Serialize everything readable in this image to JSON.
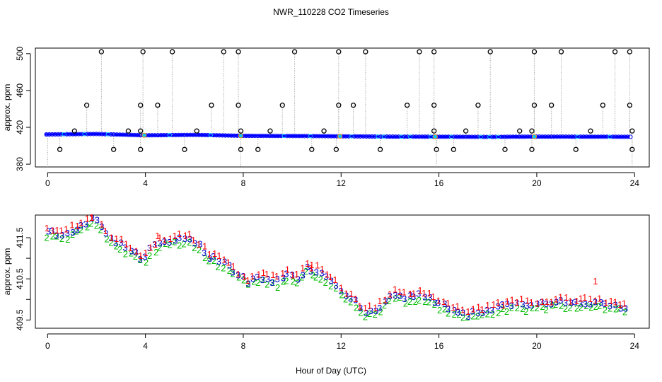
{
  "title": "NWR_110228  CO2 Timeseries",
  "xlabel": "Hour of Day (UTC)",
  "colors": {
    "line": "#a0a0a0",
    "point": "#000000",
    "blue": "#0000ff",
    "cyan": "#00c8ff",
    "orange": "#ff8c00",
    "red": "#ff0000",
    "green": "#00bb00",
    "navy": "#0000cc"
  },
  "chart_data": [
    {
      "type": "line",
      "ylabel": "approx. ppm",
      "xlim": [
        -0.5,
        24.6
      ],
      "ylim": [
        377,
        506
      ],
      "x_ticks": [
        "0",
        "4",
        "8",
        "12",
        "16",
        "20",
        "24"
      ],
      "y_ticks": [
        "380",
        "420",
        "460",
        "500"
      ],
      "baseline": [
        [
          0,
          412.3
        ],
        [
          2,
          412.8
        ],
        [
          4,
          411.3
        ],
        [
          6,
          411.8
        ],
        [
          8,
          410.8
        ],
        [
          10,
          410.6
        ],
        [
          12,
          410.3
        ],
        [
          14,
          409.9
        ],
        [
          16,
          409.8
        ],
        [
          18,
          409.6
        ],
        [
          20,
          409.9
        ],
        [
          22,
          409.8
        ],
        [
          23.8,
          409.7
        ]
      ],
      "spikes_high": [
        [
          2.2,
          502
        ],
        [
          3.9,
          502
        ],
        [
          5.1,
          502
        ],
        [
          7.2,
          502
        ],
        [
          7.8,
          502
        ],
        [
          10.1,
          502
        ],
        [
          11.9,
          502
        ],
        [
          13.0,
          502
        ],
        [
          15.2,
          502
        ],
        [
          15.8,
          502
        ],
        [
          18.1,
          502
        ],
        [
          19.9,
          502
        ],
        [
          21.0,
          502
        ],
        [
          23.2,
          502
        ],
        [
          23.8,
          502
        ]
      ],
      "spikes_mid": [
        [
          1.6,
          444
        ],
        [
          3.8,
          444
        ],
        [
          4.5,
          444
        ],
        [
          6.7,
          444
        ],
        [
          7.8,
          444
        ],
        [
          9.6,
          444
        ],
        [
          11.9,
          444
        ],
        [
          12.5,
          444
        ],
        [
          14.7,
          444
        ],
        [
          15.8,
          444
        ],
        [
          17.6,
          444
        ],
        [
          19.9,
          444
        ],
        [
          20.6,
          444
        ],
        [
          22.7,
          444
        ],
        [
          23.8,
          444
        ]
      ],
      "spikes_small": [
        [
          1.1,
          416
        ],
        [
          3.3,
          416
        ],
        [
          3.8,
          416
        ],
        [
          6.1,
          416
        ],
        [
          7.9,
          416
        ],
        [
          9.1,
          416
        ],
        [
          11.3,
          416
        ],
        [
          15.8,
          416
        ],
        [
          17.1,
          416
        ],
        [
          19.3,
          416
        ],
        [
          19.8,
          416
        ],
        [
          22.2,
          416
        ],
        [
          23.9,
          416
        ]
      ],
      "dips": [
        [
          0.5,
          396
        ],
        [
          2.7,
          396
        ],
        [
          3.8,
          396
        ],
        [
          5.6,
          396
        ],
        [
          7.9,
          396
        ],
        [
          8.6,
          396
        ],
        [
          10.8,
          396
        ],
        [
          11.8,
          396
        ],
        [
          13.6,
          396
        ],
        [
          15.9,
          396
        ],
        [
          16.6,
          396
        ],
        [
          18.7,
          396
        ],
        [
          19.8,
          396
        ],
        [
          21.6,
          396
        ],
        [
          23.9,
          396
        ]
      ]
    },
    {
      "type": "scatter",
      "ylabel": "approx. ppm",
      "xlim": [
        -0.5,
        24.6
      ],
      "ylim": [
        409.3,
        412.05
      ],
      "x_ticks": [
        "0",
        "4",
        "8",
        "12",
        "16",
        "20",
        "24"
      ],
      "y_ticks": [
        "409.5",
        "410.5",
        "411.5"
      ],
      "y_tick_values": [
        409.5,
        410.5,
        411.5
      ],
      "x_tick_values": [
        0,
        4,
        8,
        12,
        16,
        20,
        24
      ],
      "series": [
        {
          "name": "1",
          "offset": 0.08
        },
        {
          "name": "2",
          "offset": -0.1
        },
        {
          "name": "3",
          "offset": 0.0
        }
      ],
      "trend": [
        [
          0,
          411.65
        ],
        [
          0.4,
          411.6
        ],
        [
          0.8,
          411.62
        ],
        [
          1.2,
          411.75
        ],
        [
          1.6,
          411.85
        ],
        [
          1.9,
          412.0
        ],
        [
          2.2,
          411.8
        ],
        [
          2.5,
          411.5
        ],
        [
          3.0,
          411.35
        ],
        [
          3.5,
          411.15
        ],
        [
          3.9,
          411.0
        ],
        [
          4.2,
          411.2
        ],
        [
          4.6,
          411.4
        ],
        [
          5.2,
          411.45
        ],
        [
          5.8,
          411.5
        ],
        [
          6.2,
          411.3
        ],
        [
          6.6,
          411.05
        ],
        [
          7.2,
          410.9
        ],
        [
          7.8,
          410.6
        ],
        [
          8.2,
          410.45
        ],
        [
          8.6,
          410.55
        ],
        [
          9.0,
          410.5
        ],
        [
          9.4,
          410.45
        ],
        [
          9.8,
          410.6
        ],
        [
          10.2,
          410.55
        ],
        [
          10.6,
          410.75
        ],
        [
          11.0,
          410.7
        ],
        [
          11.4,
          410.55
        ],
        [
          11.8,
          410.35
        ],
        [
          12.2,
          410.1
        ],
        [
          12.6,
          409.95
        ],
        [
          13.0,
          409.7
        ],
        [
          13.4,
          409.75
        ],
        [
          13.8,
          409.95
        ],
        [
          14.2,
          410.15
        ],
        [
          14.6,
          410.05
        ],
        [
          15.2,
          410.1
        ],
        [
          15.7,
          410.0
        ],
        [
          16.2,
          409.85
        ],
        [
          16.7,
          409.75
        ],
        [
          17.2,
          409.65
        ],
        [
          17.6,
          409.7
        ],
        [
          18.2,
          409.8
        ],
        [
          18.8,
          409.85
        ],
        [
          19.4,
          409.9
        ],
        [
          19.8,
          409.85
        ],
        [
          20.4,
          409.9
        ],
        [
          21.0,
          409.95
        ],
        [
          21.6,
          409.9
        ],
        [
          22.2,
          409.95
        ],
        [
          22.6,
          409.9
        ],
        [
          23.2,
          409.85
        ],
        [
          23.7,
          409.85
        ]
      ],
      "red_peaks": [
        [
          1.8,
          412.0
        ],
        [
          4.5,
          411.55
        ],
        [
          10.8,
          410.85
        ],
        [
          22.4,
          410.45
        ]
      ]
    }
  ]
}
